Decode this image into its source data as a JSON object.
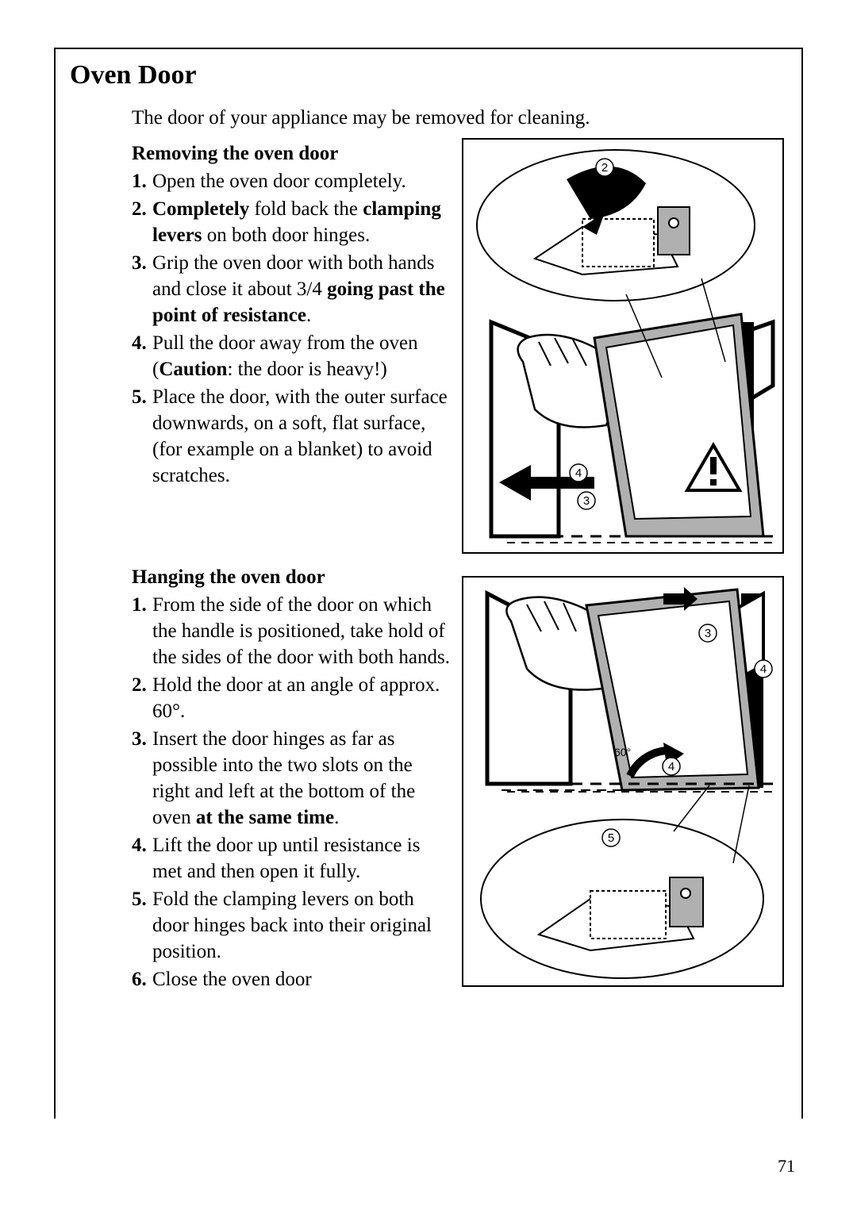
{
  "page": {
    "section_title": "Oven Door",
    "intro": "The door of your appliance may be removed for cleaning.",
    "page_number": "71"
  },
  "removing": {
    "heading": "Removing the oven door",
    "steps": [
      {
        "html": "Open the oven door completely."
      },
      {
        "html": "<span class=\"b\">Completely</span> fold back the <span class=\"b\">clamping levers</span> on both door hinges."
      },
      {
        "html": "Grip the oven door with both hands and close it about 3/4 <span class=\"b\">going past the point of resistance</span>."
      },
      {
        "html": "Pull the door away from the oven (<span class=\"b\">Caution</span>: the door is heavy!)"
      },
      {
        "html": "Place the door, with the outer surface downwards, on a soft, flat surface, (for example on a blanket) to avoid scratches."
      }
    ]
  },
  "hanging": {
    "heading": "Hanging the oven door",
    "steps": [
      {
        "html": "From the side of the door on which the handle is positioned, take hold of the sides of the door with both hands."
      },
      {
        "html": "Hold the door at an angle of approx. 60°."
      },
      {
        "html": "Insert the door hinges as far as possible into the two slots on the right and left at the bottom of the oven <span class=\"b\">at the same time</span>."
      },
      {
        "html": "Lift the door up until resistance is met and then open it fully."
      },
      {
        "html": "Fold the clamping levers on both door hinges back into their original position."
      },
      {
        "html": "Close the oven door"
      }
    ]
  },
  "figures": {
    "fig1_labels": [
      "2",
      "3",
      "4"
    ],
    "fig2_labels": [
      "3",
      "4",
      "4",
      "5"
    ],
    "fig2_angle": "60°",
    "colors": {
      "grey_fill": "#b0b0b0",
      "black": "#000000",
      "white": "#ffffff"
    }
  }
}
